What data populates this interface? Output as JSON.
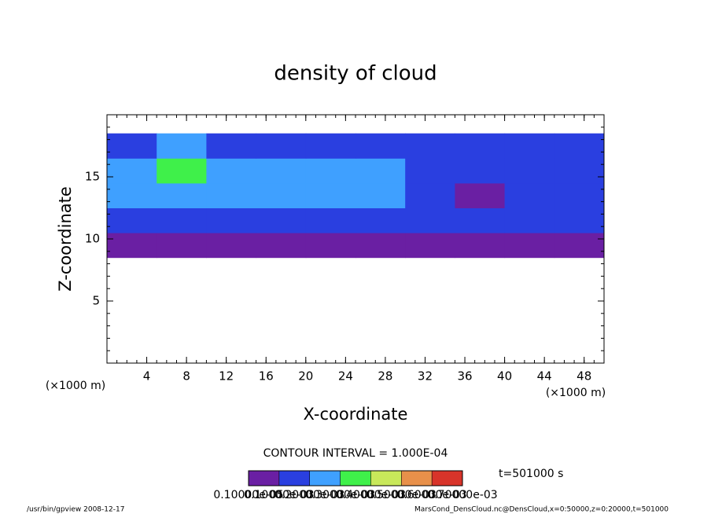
{
  "chart_data": {
    "type": "heatmap",
    "title": "density of cloud",
    "x_label": "X-coordinate",
    "y_label": "Z-coordinate",
    "x_unit": "(×1000 m)",
    "y_unit": "(×1000 m)",
    "contour_note": "CONTOUR INTERVAL = 1.000E-04",
    "time_note": "t=501000 s",
    "footer_left": "/usr/bin/gpview  2008-12-17",
    "footer_right": "MarsCond_DensCloud.nc@DensCloud,x=0:50000,z=0:20000,t=501000",
    "xlim": [
      0,
      50
    ],
    "ylim": [
      0,
      20
    ],
    "xticks": [
      4,
      8,
      12,
      16,
      20,
      24,
      28,
      32,
      36,
      40,
      44,
      48
    ],
    "yticks": [
      5,
      10,
      15
    ],
    "x": [
      2.5,
      7.5,
      12.5,
      17.5,
      22.5,
      27.5,
      32.5,
      37.5,
      42.5,
      47.5
    ],
    "z": [
      9.5,
      11.5,
      13.5,
      15.5,
      17.5
    ],
    "values": [
      [
        8e-05,
        6e-05,
        7e-05,
        5e-05,
        7e-05,
        8e-05,
        6e-05,
        5e-05,
        6e-05,
        5e-05
      ],
      [
        0.00016,
        0.00015,
        0.00017,
        0.00018,
        0.00017,
        0.00016,
        0.00012,
        0.0001,
        0.00012,
        0.00011
      ],
      [
        0.00022,
        0.00024,
        0.00023,
        0.00026,
        0.00027,
        0.00024,
        0.00016,
        9e-05,
        0.00012,
        0.00014
      ],
      [
        0.00027,
        0.0003,
        0.00026,
        0.00025,
        0.00029,
        0.00022,
        0.00013,
        0.00012,
        0.00014,
        0.00017
      ],
      [
        0.00019,
        0.00021,
        0.00018,
        0.00016,
        0.00018,
        0.00015,
        0.0001,
        0.00011,
        0.00012,
        0.00013
      ]
    ],
    "colorbar_ticks": [
      {
        "value": 1e-06,
        "label": "0.10000e-05"
      },
      {
        "value": 0.0001,
        "label": "0.10000e-03"
      },
      {
        "value": 0.0002,
        "label": "0.20000e-03"
      },
      {
        "value": 0.0003,
        "label": "0.30000e-03"
      },
      {
        "value": 0.0004,
        "label": "0.40000e-03"
      },
      {
        "value": 0.0005,
        "label": "0.50000e-03"
      },
      {
        "value": 0.0006,
        "label": "0.60000e-03"
      },
      {
        "value": 0.0007,
        "label": "0.70000e-03"
      }
    ],
    "colors": [
      "#6a1fa3",
      "#2a3fe0",
      "#3fa0ff",
      "#3ff04a",
      "#c8e85a",
      "#e8904a",
      "#d8342a"
    ]
  }
}
